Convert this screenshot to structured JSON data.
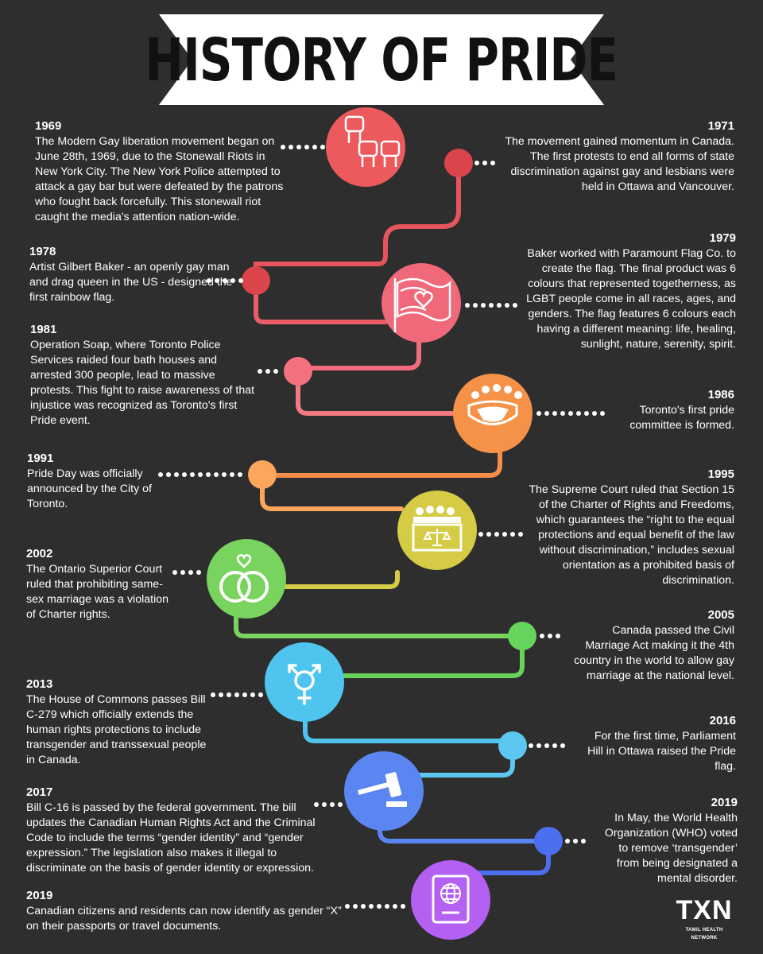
{
  "header": {
    "title": "HISTORY OF PRIDE"
  },
  "colors": {
    "background": "#2e2e2e",
    "banner": "#ffffff",
    "red": "#ec5a5e",
    "dark_red": "#d9454b",
    "coral": "#f0697a",
    "pink": "#f4727f",
    "orange": "#f69247",
    "light_orange": "#fba65b",
    "yellow": "#d5cb45",
    "green": "#79d35f",
    "light_green": "#67d45c",
    "sky_blue": "#4ec4ee",
    "light_blue": "#5cc8f2",
    "blue": "#5b85f0",
    "dark_blue": "#4c6ff0",
    "purple": "#b460f2"
  },
  "icons": [
    "raised-fists-icon",
    "flag-heart-icon",
    "crowd-bowl-icon",
    "courtroom-scales-icon",
    "wedding-rings-icon",
    "transgender-symbol-icon",
    "gavel-icon",
    "passport-icon"
  ],
  "events": [
    {
      "year": "1969",
      "side": "left",
      "text": "The Modern Gay liberation movement began on June 28th, 1969, due to the Stonewall Riots in New York City. The New York Police attempted to attack a gay bar but were defeated by the patrons who fought back forcefully. This stonewall riot caught the media's attention nation-wide."
    },
    {
      "year": "1971",
      "side": "right",
      "text": "The movement gained momentum in Canada. The first protests to end all forms of state discrimination against gay and lesbians were held in Ottawa and Vancouver."
    },
    {
      "year": "1978",
      "side": "left",
      "text": "Artist Gilbert Baker - an openly gay man and drag queen in the US - designed the first rainbow flag."
    },
    {
      "year": "1979",
      "side": "right",
      "text": "Baker worked with Paramount Flag Co. to create the flag. The final product was 6 colours that represented togetherness, as LGBT people come in all races, ages, and genders. The flag features 6 colours each having a different meaning: life, healing, sunlight, nature, serenity, spirit."
    },
    {
      "year": "1981",
      "side": "left",
      "text": "Operation Soap, where Toronto Police Services raided four bath houses and arrested 300 people, lead to massive protests. This fight to raise awareness of that injustice was recognized as Toronto's first Pride event."
    },
    {
      "year": "1986",
      "side": "right",
      "text": "Toronto's first pride committee is formed."
    },
    {
      "year": "1991",
      "side": "left",
      "text": "Pride Day was officially announced by the City of Toronto."
    },
    {
      "year": "1995",
      "side": "right",
      "text": "The Supreme Court ruled that Section 15 of the Charter of Rights and Freedoms, which guarantees the “right to the equal protections and equal benefit of the law without discrimination,” includes sexual orientation as a prohibited basis of discrimination."
    },
    {
      "year": "2002",
      "side": "left",
      "text": "The Ontario Superior Court ruled that prohibiting same-sex marriage was a violation of Charter rights."
    },
    {
      "year": "2005",
      "side": "right",
      "text": "Canada passed the Civil Marriage Act making it the 4th country in the world to allow gay marriage at the national level."
    },
    {
      "year": "2013",
      "side": "left",
      "text": "The House of Commons passes Bill C-279 which officially extends the human rights protections to include transgender and transsexual people in Canada."
    },
    {
      "year": "2016",
      "side": "right",
      "text": "For the first time, Parliament Hill in Ottawa raised the Pride flag."
    },
    {
      "year": "2017",
      "side": "left",
      "text": "Bill C-16 is passed by the federal government. The bill updates the Canadian Human Rights Act and the Criminal Code to include the terms “gender identity” and “gender expression.” The legislation also makes it illegal to discriminate on the basis of gender identity or expression."
    },
    {
      "year": "2019",
      "side": "right",
      "text": "In May, the World Health Organization (WHO) voted to remove ‘transgender’ from being designated a mental disorder."
    },
    {
      "year": "2019",
      "side": "left",
      "text": "Canadian citizens and residents can now identify as gender “X” on their passports or travel documents."
    }
  ],
  "logo": {
    "mark": "TXN",
    "subtitle": "TAMIL HEALTH NETWORK"
  }
}
